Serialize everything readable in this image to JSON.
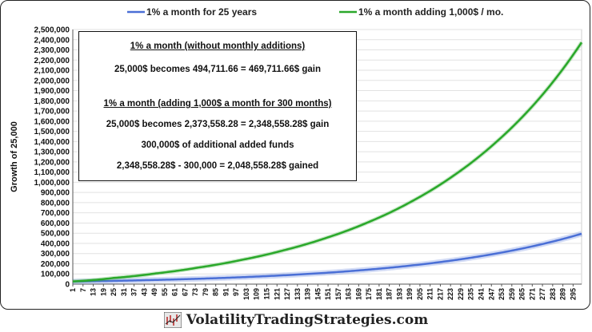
{
  "chart_data": {
    "type": "line",
    "title": "",
    "ylabel": "Growth of 25,000",
    "xlabel": "",
    "ylim": [
      0,
      2500000
    ],
    "y_ticks": [
      "0",
      "100,000",
      "200,000",
      "300,000",
      "400,000",
      "500,000",
      "600,000",
      "700,000",
      "800,000",
      "900,000",
      "1,000,000",
      "1,100,000",
      "1,200,000",
      "1,300,000",
      "1,400,000",
      "1,500,000",
      "1,600,000",
      "1,700,000",
      "1,800,000",
      "1,900,000",
      "2,000,000",
      "2,100,000",
      "2,200,000",
      "2,300,000",
      "2,400,000",
      "2,500,000"
    ],
    "x_ticks": [
      "1",
      "7",
      "13",
      "19",
      "25",
      "31",
      "37",
      "43",
      "49",
      "55",
      "61",
      "67",
      "73",
      "79",
      "85",
      "91",
      "97",
      "103",
      "109",
      "115",
      "121",
      "127",
      "133",
      "139",
      "145",
      "151",
      "157",
      "163",
      "169",
      "175",
      "181",
      "187",
      "193",
      "199",
      "205",
      "211",
      "217",
      "223",
      "229",
      "235",
      "241",
      "247",
      "253",
      "259",
      "265",
      "271",
      "277",
      "283",
      "289",
      "295"
    ],
    "xlim": [
      1,
      300
    ],
    "grid": true,
    "legend_placement": "top",
    "x": [
      1,
      25,
      50,
      75,
      100,
      125,
      150,
      175,
      200,
      225,
      250,
      275,
      300
    ],
    "series": [
      {
        "name": "1% a month for 25 years",
        "color": "#4a6fd6",
        "values": [
          25250,
          32059,
          41114,
          52727,
          67621,
          86721,
          111217,
          142631,
          182918,
          234585,
          300846,
          385824,
          494712
        ]
      },
      {
        "name": "1% a month adding 1,000$ / mo.",
        "color": "#2aa82a",
        "values": [
          26250,
          60322,
          105387,
          163180,
          237300,
          332355,
          454260,
          610598,
          811090,
          1068220,
          1397960,
          1820860,
          2373558
        ]
      }
    ]
  },
  "infobox": {
    "heading1": "1% a month   (without monthly additions)",
    "line1": "25,000$ becomes 494,711.66  =  469,711.66$ gain",
    "heading2": "1% a month   (adding 1,000$ a month for 300 months)",
    "line2": "25,000$ becomes 2,373,558.28  =  2,348,558.28$ gain",
    "line3": "300,000$ of additional added funds",
    "line4": "2,348,558.28$  -  300,000  =  2,048,558.28$ gained"
  },
  "footer": {
    "site": "VolatilityTradingStrategies.com",
    "icon": "chart-logo-icon"
  }
}
